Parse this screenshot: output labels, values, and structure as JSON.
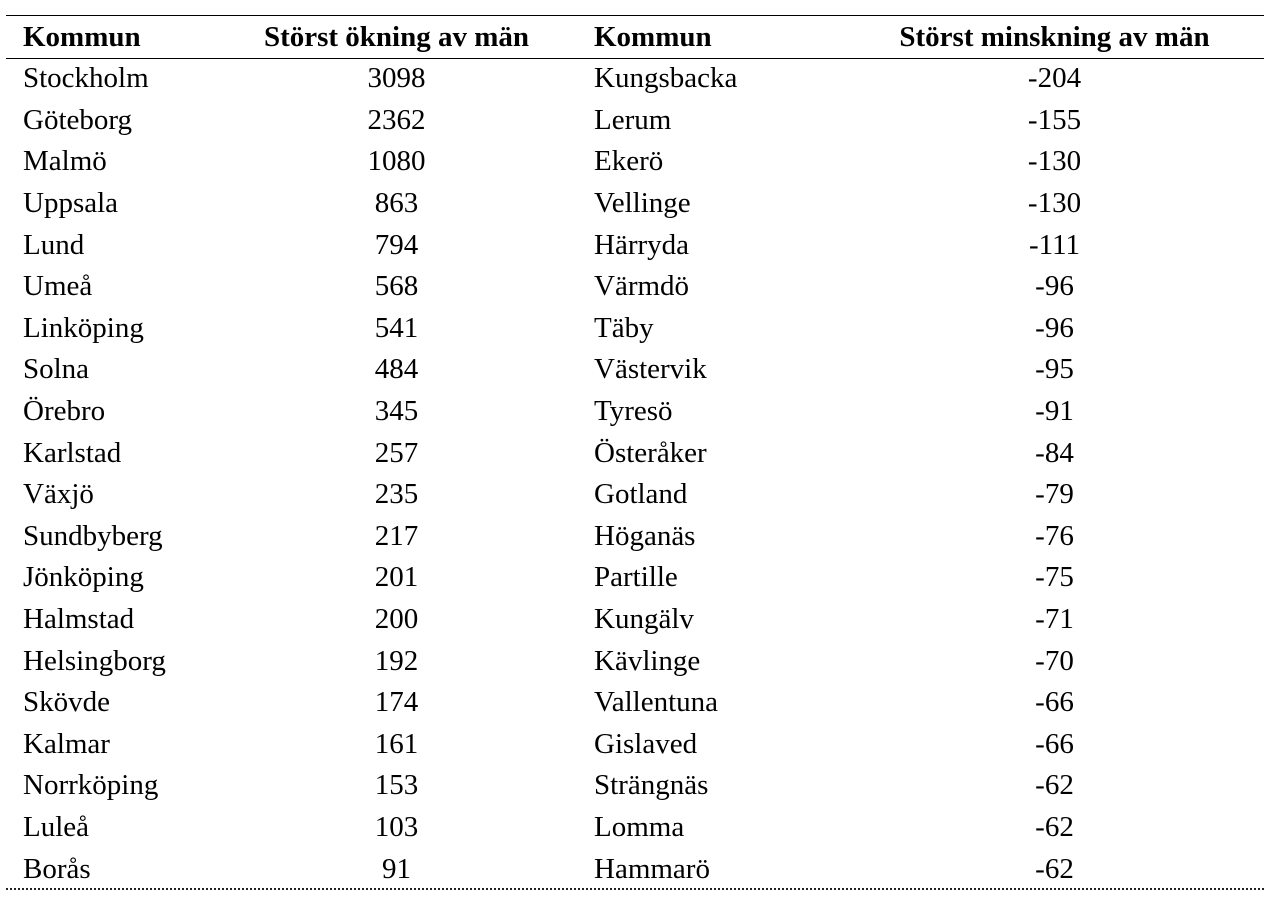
{
  "table": {
    "headers": [
      "Kommun",
      "Störst ökning av män",
      "Kommun",
      "Störst minskning av män"
    ],
    "rows": [
      [
        "Stockholm",
        "3098",
        "Kungsbacka",
        "-204"
      ],
      [
        "Göteborg",
        "2362",
        "Lerum",
        "-155"
      ],
      [
        "Malmö",
        "1080",
        "Ekerö",
        "-130"
      ],
      [
        "Uppsala",
        "863",
        "Vellinge",
        "-130"
      ],
      [
        "Lund",
        "794",
        "Härryda",
        "-111"
      ],
      [
        "Umeå",
        "568",
        "Värmdö",
        "-96"
      ],
      [
        "Linköping",
        "541",
        "Täby",
        "-96"
      ],
      [
        "Solna",
        "484",
        "Västervik",
        "-95"
      ],
      [
        "Örebro",
        "345",
        "Tyresö",
        "-91"
      ],
      [
        "Karlstad",
        "257",
        "Österåker",
        "-84"
      ],
      [
        "Växjö",
        "235",
        "Gotland",
        "-79"
      ],
      [
        "Sundbyberg",
        "217",
        "Höganäs",
        "-76"
      ],
      [
        "Jönköping",
        "201",
        "Partille",
        "-75"
      ],
      [
        "Halmstad",
        "200",
        "Kungälv",
        "-71"
      ],
      [
        "Helsingborg",
        "192",
        "Kävlinge",
        "-70"
      ],
      [
        "Skövde",
        "174",
        "Vallentuna",
        "-66"
      ],
      [
        "Kalmar",
        "161",
        "Gislaved",
        "-66"
      ],
      [
        "Norrköping",
        "153",
        "Strängnäs",
        "-62"
      ],
      [
        "Luleå",
        "103",
        "Lomma",
        "-62"
      ],
      [
        "Borås",
        "91",
        "Hammarö",
        "-62"
      ]
    ]
  }
}
